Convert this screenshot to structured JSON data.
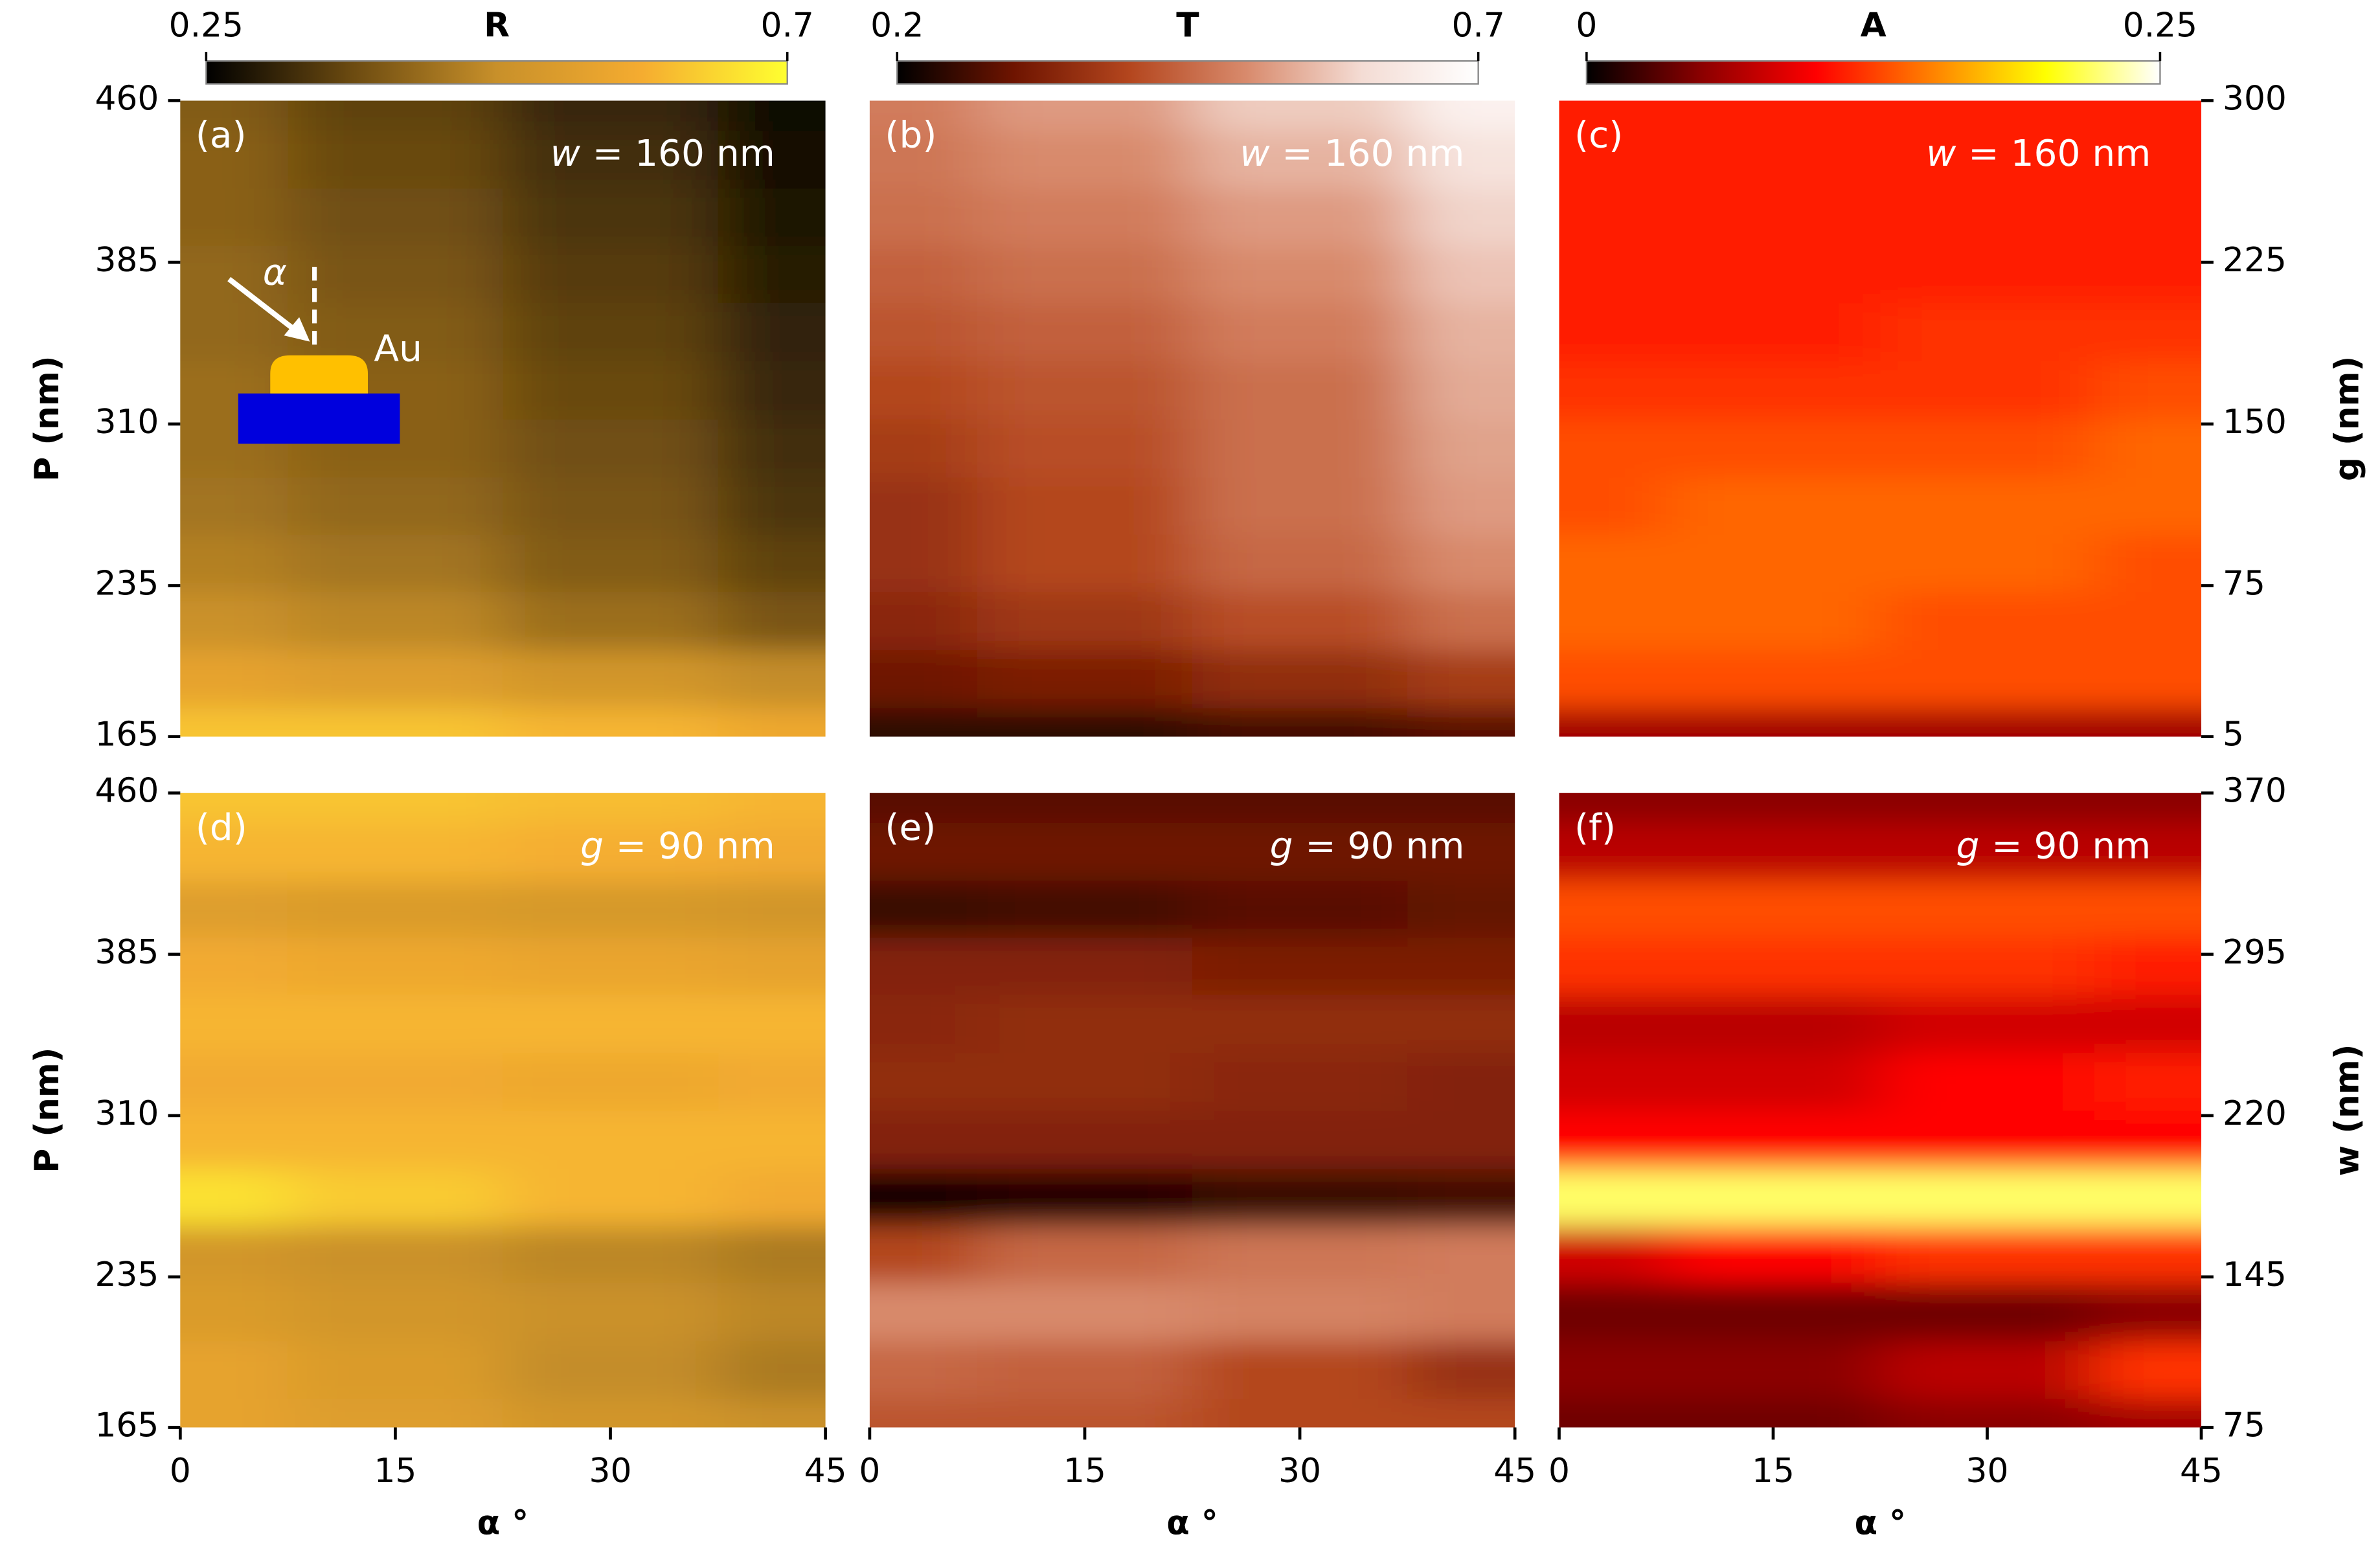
{
  "chart_data": [
    {
      "type": "heatmap",
      "label": "(a)",
      "annotation_symbol": "w",
      "annotation": "= 160 nm",
      "x": [
        0,
        15,
        30,
        45
      ],
      "y": [
        165,
        192,
        219,
        246,
        272,
        299,
        326,
        353,
        380,
        406,
        433,
        460
      ],
      "z": [
        [
          0.62,
          0.62,
          0.6,
          0.57
        ],
        [
          0.55,
          0.53,
          0.5,
          0.47
        ],
        [
          0.48,
          0.46,
          0.42,
          0.38
        ],
        [
          0.45,
          0.43,
          0.39,
          0.35
        ],
        [
          0.43,
          0.41,
          0.38,
          0.33
        ],
        [
          0.42,
          0.4,
          0.37,
          0.32
        ],
        [
          0.42,
          0.4,
          0.36,
          0.31
        ],
        [
          0.41,
          0.39,
          0.35,
          0.3
        ],
        [
          0.41,
          0.38,
          0.34,
          0.29
        ],
        [
          0.4,
          0.37,
          0.33,
          0.28
        ],
        [
          0.4,
          0.36,
          0.32,
          0.27
        ],
        [
          0.39,
          0.35,
          0.31,
          0.26
        ]
      ],
      "zlim": [
        0.25,
        0.7
      ],
      "colormap": [
        "#000000",
        "#6b4a10",
        "#c8902a",
        "#f5ac30",
        "#ffff30"
      ],
      "colorbar": {
        "label": "R",
        "ticks": [
          0.25,
          0.7
        ]
      },
      "xlim": [
        0,
        45
      ],
      "ylim": [
        165,
        460
      ],
      "yticks": [
        165,
        235,
        310,
        385,
        460
      ],
      "ylabel": "P (nm)",
      "inset": {
        "angle_label": "α",
        "material": "Au"
      }
    },
    {
      "type": "heatmap",
      "label": "(b)",
      "annotation_symbol": "w",
      "annotation": "= 160 nm",
      "x": [
        0,
        15,
        30,
        45
      ],
      "y": [
        165,
        192,
        219,
        246,
        272,
        299,
        326,
        353,
        380,
        406,
        433,
        460
      ],
      "z": [
        [
          0.24,
          0.24,
          0.26,
          0.28
        ],
        [
          0.3,
          0.32,
          0.35,
          0.38
        ],
        [
          0.34,
          0.37,
          0.41,
          0.46
        ],
        [
          0.36,
          0.4,
          0.45,
          0.5
        ],
        [
          0.36,
          0.4,
          0.46,
          0.52
        ],
        [
          0.38,
          0.41,
          0.46,
          0.53
        ],
        [
          0.4,
          0.42,
          0.46,
          0.54
        ],
        [
          0.42,
          0.44,
          0.48,
          0.55
        ],
        [
          0.44,
          0.46,
          0.5,
          0.57
        ],
        [
          0.46,
          0.48,
          0.52,
          0.59
        ],
        [
          0.47,
          0.5,
          0.55,
          0.62
        ],
        [
          0.48,
          0.52,
          0.58,
          0.66
        ]
      ],
      "zlim": [
        0.2,
        0.7
      ],
      "colormap": [
        "#000000",
        "#6e1400",
        "#b4461e",
        "#d88a6c",
        "#f4dcd4",
        "#ffffff"
      ],
      "colorbar": {
        "label": "T",
        "ticks": [
          0.2,
          0.7
        ]
      },
      "xlim": [
        0,
        45
      ],
      "ylim": [
        165,
        460
      ]
    },
    {
      "type": "heatmap",
      "label": "(c)",
      "annotation_symbol": "w",
      "annotation": "= 160 nm",
      "x": [
        0,
        15,
        30,
        45
      ],
      "y": [
        165,
        192,
        219,
        246,
        272,
        299,
        326,
        353,
        380,
        406,
        433,
        460
      ],
      "z": [
        [
          0.06,
          0.06,
          0.06,
          0.06
        ],
        [
          0.13,
          0.13,
          0.13,
          0.13
        ],
        [
          0.14,
          0.14,
          0.13,
          0.13
        ],
        [
          0.14,
          0.14,
          0.14,
          0.13
        ],
        [
          0.13,
          0.14,
          0.14,
          0.14
        ],
        [
          0.13,
          0.13,
          0.13,
          0.14
        ],
        [
          0.12,
          0.12,
          0.12,
          0.13
        ],
        [
          0.11,
          0.11,
          0.12,
          0.12
        ],
        [
          0.11,
          0.11,
          0.11,
          0.11
        ],
        [
          0.11,
          0.11,
          0.11,
          0.11
        ],
        [
          0.11,
          0.11,
          0.11,
          0.11
        ],
        [
          0.11,
          0.11,
          0.11,
          0.11
        ]
      ],
      "zlim": [
        0,
        0.25
      ],
      "colormap": [
        "#000000",
        "#8b0000",
        "#ff0000",
        "#ff8000",
        "#ffff00",
        "#ffffff"
      ],
      "colorbar": {
        "label": "A",
        "ticks": [
          0,
          0.25
        ]
      },
      "xlim": [
        0,
        45
      ],
      "ylim": [
        165,
        460
      ],
      "y2lim": [
        5,
        300
      ],
      "y2ticks": [
        5,
        75,
        150,
        225,
        300
      ],
      "y2label": "g (nm)"
    },
    {
      "type": "heatmap",
      "label": "(d)",
      "annotation_symbol": "g",
      "annotation": "= 90 nm",
      "x": [
        0,
        15,
        30,
        45
      ],
      "y": [
        165,
        192,
        219,
        246,
        272,
        299,
        326,
        353,
        380,
        406,
        433,
        460
      ],
      "z": [
        [
          0.55,
          0.53,
          0.5,
          0.48
        ],
        [
          0.55,
          0.52,
          0.47,
          0.44
        ],
        [
          0.52,
          0.5,
          0.48,
          0.46
        ],
        [
          0.5,
          0.48,
          0.46,
          0.44
        ],
        [
          0.66,
          0.63,
          0.6,
          0.58
        ],
        [
          0.6,
          0.6,
          0.6,
          0.6
        ],
        [
          0.58,
          0.58,
          0.57,
          0.58
        ],
        [
          0.6,
          0.6,
          0.6,
          0.6
        ],
        [
          0.58,
          0.57,
          0.56,
          0.55
        ],
        [
          0.53,
          0.52,
          0.51,
          0.5
        ],
        [
          0.6,
          0.6,
          0.59,
          0.58
        ],
        [
          0.62,
          0.62,
          0.61,
          0.6
        ]
      ],
      "zlim": [
        0.25,
        0.7
      ],
      "colormap": [
        "#000000",
        "#6b4a10",
        "#c8902a",
        "#f5ac30",
        "#ffff30"
      ],
      "xlim": [
        0,
        45
      ],
      "xticks": [
        0,
        15,
        30,
        45
      ],
      "xlabel": "α °",
      "ylim": [
        165,
        460
      ],
      "yticks": [
        165,
        235,
        310,
        385,
        460
      ],
      "ylabel": "P (nm)"
    },
    {
      "type": "heatmap",
      "label": "(e)",
      "annotation_symbol": "g",
      "annotation": "= 90 nm",
      "x": [
        0,
        15,
        30,
        45
      ],
      "y": [
        165,
        192,
        219,
        246,
        272,
        299,
        326,
        353,
        380,
        406,
        433,
        460
      ],
      "z": [
        [
          0.42,
          0.42,
          0.4,
          0.4
        ],
        [
          0.45,
          0.44,
          0.4,
          0.36
        ],
        [
          0.5,
          0.5,
          0.49,
          0.48
        ],
        [
          0.4,
          0.45,
          0.47,
          0.48
        ],
        [
          0.21,
          0.23,
          0.25,
          0.26
        ],
        [
          0.33,
          0.33,
          0.33,
          0.33
        ],
        [
          0.35,
          0.35,
          0.34,
          0.33
        ],
        [
          0.34,
          0.35,
          0.35,
          0.35
        ],
        [
          0.33,
          0.33,
          0.32,
          0.32
        ],
        [
          0.25,
          0.26,
          0.28,
          0.29
        ],
        [
          0.3,
          0.3,
          0.3,
          0.3
        ],
        [
          0.28,
          0.28,
          0.28,
          0.28
        ]
      ],
      "zlim": [
        0.2,
        0.7
      ],
      "colormap": [
        "#000000",
        "#6e1400",
        "#b4461e",
        "#d88a6c",
        "#f4dcd4",
        "#ffffff"
      ],
      "xlim": [
        0,
        45
      ],
      "xticks": [
        0,
        15,
        30,
        45
      ],
      "xlabel": "α °",
      "ylim": [
        165,
        460
      ]
    },
    {
      "type": "heatmap",
      "label": "(f)",
      "annotation_symbol": "g",
      "annotation": "= 90 nm",
      "x": [
        0,
        15,
        30,
        45
      ],
      "y": [
        165,
        192,
        219,
        246,
        272,
        299,
        326,
        353,
        380,
        406,
        433,
        460
      ],
      "z": [
        [
          0.04,
          0.04,
          0.05,
          0.06
        ],
        [
          0.05,
          0.05,
          0.07,
          0.12
        ],
        [
          0.04,
          0.04,
          0.04,
          0.05
        ],
        [
          0.08,
          0.1,
          0.12,
          0.12
        ],
        [
          0.22,
          0.22,
          0.22,
          0.22
        ],
        [
          0.1,
          0.1,
          0.1,
          0.1
        ],
        [
          0.08,
          0.08,
          0.1,
          0.11
        ],
        [
          0.07,
          0.07,
          0.08,
          0.08
        ],
        [
          0.12,
          0.12,
          0.12,
          0.11
        ],
        [
          0.13,
          0.13,
          0.13,
          0.13
        ],
        [
          0.07,
          0.07,
          0.07,
          0.07
        ],
        [
          0.05,
          0.05,
          0.05,
          0.05
        ]
      ],
      "zlim": [
        0,
        0.25
      ],
      "colormap": [
        "#000000",
        "#8b0000",
        "#ff0000",
        "#ff8000",
        "#ffff00",
        "#ffffff"
      ],
      "xlim": [
        0,
        45
      ],
      "xticks": [
        0,
        15,
        30,
        45
      ],
      "xlabel": "α °",
      "ylim": [
        165,
        460
      ],
      "y2lim": [
        75,
        370
      ],
      "y2ticks": [
        75,
        145,
        220,
        295,
        370
      ],
      "y2label": "w (nm)"
    }
  ]
}
